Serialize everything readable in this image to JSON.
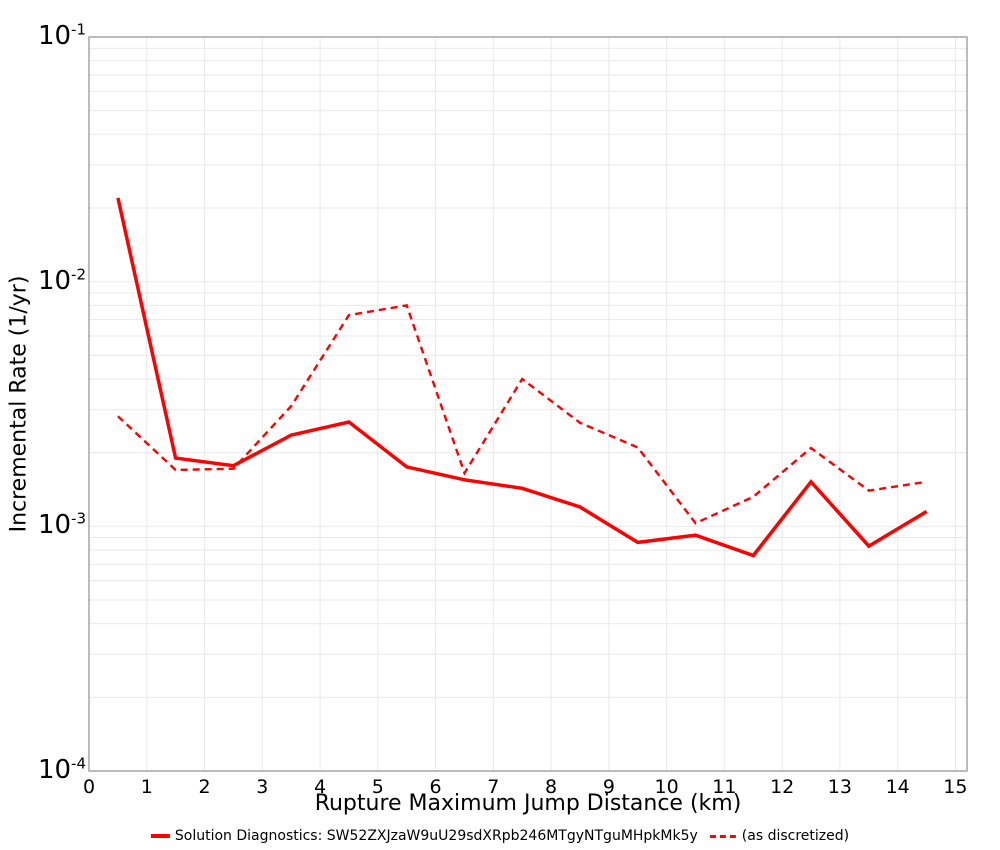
{
  "chart_data": {
    "type": "line",
    "title": "",
    "xlabel": "Rupture Maximum Jump Distance (km)",
    "ylabel": "Incremental Rate (1/yr)",
    "xlim": [
      0,
      15.2
    ],
    "ylim": [
      0.0001,
      0.1
    ],
    "ylog": true,
    "grid": true,
    "legend_position": "bottom",
    "x_ticks": [
      0,
      1,
      2,
      3,
      4,
      5,
      6,
      7,
      8,
      9,
      10,
      11,
      12,
      13,
      14,
      15
    ],
    "y_ticks": [
      {
        "base": "10",
        "exp": "-1",
        "value": 0.1
      },
      {
        "base": "10",
        "exp": "-2",
        "value": 0.01
      },
      {
        "base": "10",
        "exp": "-3",
        "value": 0.001
      },
      {
        "base": "10",
        "exp": "-4",
        "value": 0.0001
      }
    ],
    "x": [
      0.5,
      1.5,
      2.5,
      3.5,
      4.5,
      5.5,
      6.5,
      7.5,
      8.5,
      9.5,
      10.5,
      11.5,
      12.5,
      13.5,
      14.5
    ],
    "series": [
      {
        "name": "Solution Diagnostics: SW52ZXJzaW9uU29sdXRpb246MTgyNTguMHpkMk5y",
        "style": "solid",
        "color": "#ff0000",
        "values": [
          0.022,
          0.0019,
          0.00177,
          0.00236,
          0.00267,
          0.00175,
          0.00155,
          0.00143,
          0.0012,
          0.00086,
          0.00092,
          0.00076,
          0.00152,
          0.00083,
          0.00115
        ]
      },
      {
        "name": "(as discretized)",
        "style": "dashed",
        "color": "#ff0000",
        "values": [
          0.00282,
          0.0017,
          0.00172,
          0.0031,
          0.0073,
          0.008,
          0.00165,
          0.004,
          0.00265,
          0.0021,
          0.00103,
          0.00132,
          0.00209,
          0.0014,
          0.00152
        ]
      }
    ],
    "colors": {
      "grid": "#e9e9e9",
      "frame": "#a6a6a6",
      "background": "#ffffff",
      "text": "#000000"
    }
  }
}
